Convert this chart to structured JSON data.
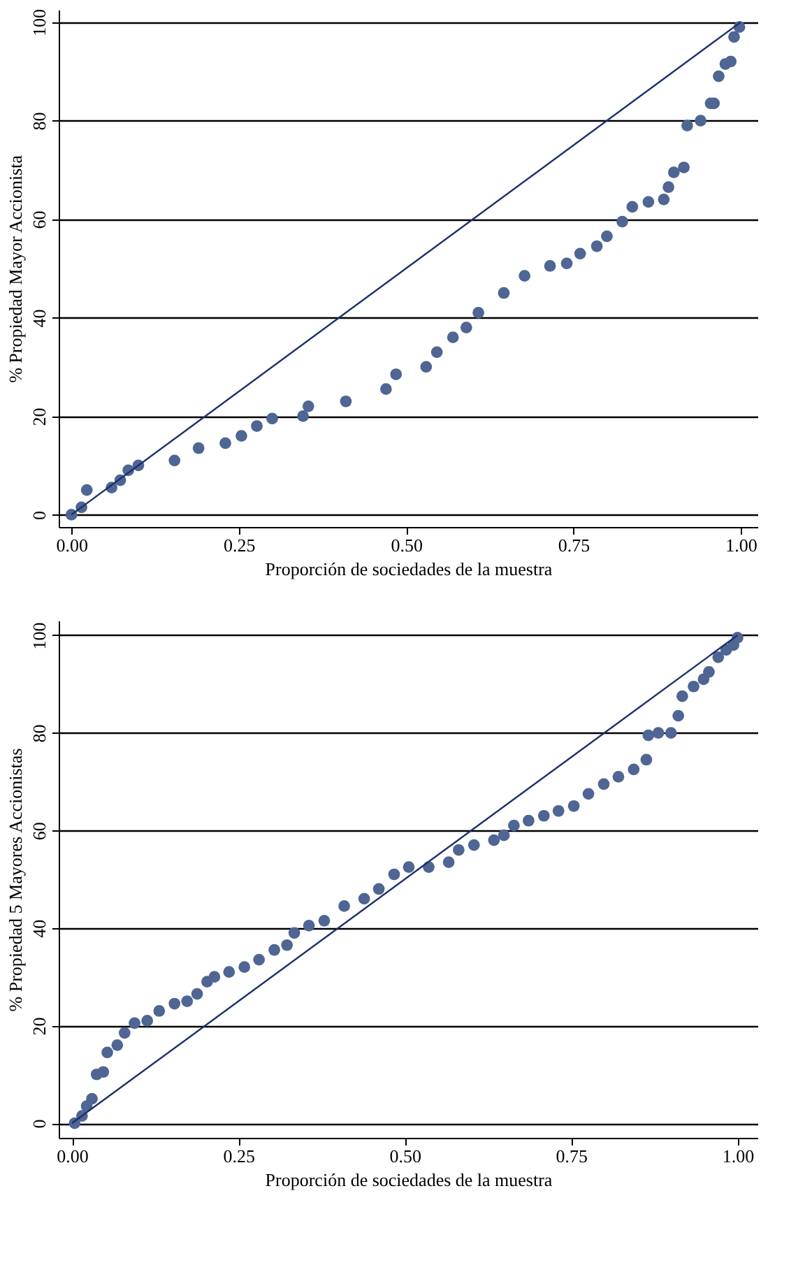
{
  "chart_data": [
    {
      "type": "scatter",
      "xlabel": "Proporción de sociedades de la muestra",
      "ylabel": "% Propiedad Mayor Accionista",
      "xlim": [
        -0.019,
        1.025
      ],
      "ylim": [
        -2.5,
        102.5
      ],
      "xticks": [
        {
          "value": 0,
          "label": "0.00"
        },
        {
          "value": 0.25,
          "label": "0.25"
        },
        {
          "value": 0.5,
          "label": "0.50"
        },
        {
          "value": 0.75,
          "label": "0.75"
        },
        {
          "value": 1,
          "label": "1.00"
        }
      ],
      "yticks": [
        0,
        20,
        40,
        60,
        80,
        100
      ],
      "grid": "y",
      "series": [
        {
          "type": "scatter",
          "marker": "circle",
          "color": "#4f6594",
          "x": [
            0,
            0.015,
            0.023,
            0.06,
            0.073,
            0.085,
            0.1,
            0.154,
            0.19,
            0.23,
            0.254,
            0.277,
            0.3,
            0.346,
            0.354,
            0.41,
            0.47,
            0.485,
            0.53,
            0.546,
            0.57,
            0.59,
            0.608,
            0.646,
            0.677,
            0.715,
            0.74,
            0.76,
            0.785,
            0.8,
            0.823,
            0.838,
            0.862,
            0.885,
            0.892,
            0.9,
            0.915,
            0.92,
            0.94,
            0.955,
            0.96,
            0.967,
            0.977,
            0.985,
            0.99,
            0.998
          ],
          "values": [
            0,
            1.5,
            5,
            5.5,
            7,
            9,
            10,
            11,
            13.5,
            14.5,
            16,
            18,
            19.5,
            20,
            22,
            23,
            25.5,
            28.5,
            30,
            33,
            36,
            38,
            41,
            45,
            48.5,
            50.5,
            51,
            53,
            54.5,
            56.5,
            59.5,
            62.5,
            63.5,
            64,
            66.5,
            69.5,
            70.5,
            79,
            80,
            83.5,
            83.5,
            89,
            91.5,
            92,
            97,
            99
          ]
        },
        {
          "type": "line",
          "line_style": "solid",
          "color": "#1a2e6b",
          "x": [
            0,
            1
          ],
          "values": [
            0,
            100
          ]
        }
      ]
    },
    {
      "type": "scatter",
      "xlabel": "Proporción de sociedades de la muestra",
      "ylabel": "% Propiedad 5 Mayores Accionistas",
      "xlim": [
        -0.02,
        1.03
      ],
      "ylim": [
        -3,
        103
      ],
      "xticks": [
        {
          "value": 0,
          "label": "0.00"
        },
        {
          "value": 0.25,
          "label": "0.25"
        },
        {
          "value": 0.5,
          "label": "0.50"
        },
        {
          "value": 0.75,
          "label": "0.75"
        },
        {
          "value": 1,
          "label": "1.00"
        }
      ],
      "yticks": [
        0,
        20,
        40,
        60,
        80,
        100
      ],
      "grid": "y",
      "series": [
        {
          "type": "scatter",
          "marker": "circle",
          "color": "#4f6594",
          "x": [
            0.004,
            0.015,
            0.022,
            0.03,
            0.037,
            0.047,
            0.053,
            0.068,
            0.079,
            0.094,
            0.113,
            0.131,
            0.154,
            0.173,
            0.188,
            0.203,
            0.214,
            0.236,
            0.259,
            0.281,
            0.304,
            0.323,
            0.334,
            0.356,
            0.379,
            0.409,
            0.439,
            0.461,
            0.484,
            0.506,
            0.536,
            0.566,
            0.581,
            0.604,
            0.634,
            0.649,
            0.664,
            0.686,
            0.709,
            0.731,
            0.754,
            0.776,
            0.799,
            0.821,
            0.844,
            0.863,
            0.866,
            0.881,
            0.9,
            0.911,
            0.917,
            0.934,
            0.949,
            0.957,
            0.971,
            0.983,
            0.994,
            1.0
          ],
          "values": [
            0,
            1.5,
            3.5,
            5,
            10,
            10.5,
            14.5,
            16,
            18.5,
            20.5,
            21,
            23,
            24.5,
            25,
            26.5,
            29,
            30,
            31,
            32,
            33.5,
            35.5,
            36.5,
            39,
            40.5,
            41.5,
            44.5,
            46,
            48,
            51,
            52.5,
            52.5,
            53.5,
            56,
            57,
            58,
            59,
            61,
            62,
            63,
            64,
            65,
            67.5,
            69.5,
            71,
            72.5,
            74.5,
            79.5,
            80,
            80,
            83.5,
            87.5,
            89.5,
            91,
            92.5,
            95.5,
            97,
            98,
            99.5
          ]
        },
        {
          "type": "line",
          "line_style": "solid",
          "color": "#1a2e6b",
          "x": [
            0,
            1
          ],
          "values": [
            0,
            100
          ]
        }
      ]
    }
  ]
}
